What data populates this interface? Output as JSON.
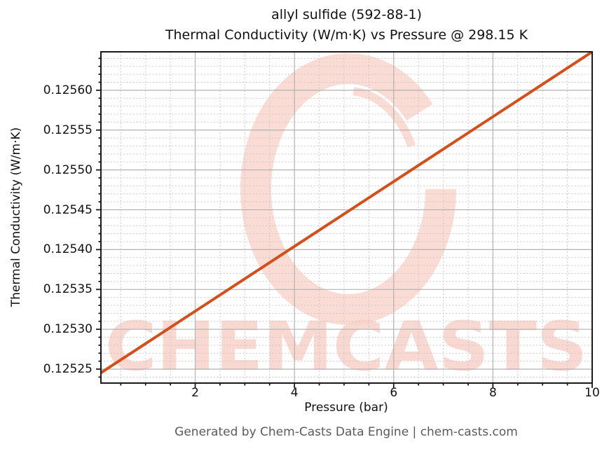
{
  "title": {
    "line1": "allyl sulfide (592-88-1)",
    "line2": "Thermal Conductivity (W/m·K) vs Pressure @ 298.15 K"
  },
  "footer": "Generated by Chem-Casts Data Engine | chem-casts.com",
  "watermark": {
    "text": "CHEMCASTS",
    "logo": "brush-ring-icon",
    "ring_color": "#fadcd5",
    "text_color": "#f8d2c9"
  },
  "chart_data": {
    "type": "line",
    "xlabel": "Pressure (bar)",
    "ylabel": "Thermal Conductivity (W/m·K)",
    "xlim": [
      0.1,
      10
    ],
    "ylim": [
      0.1252325,
      0.1256482
    ],
    "grid": {
      "major": true,
      "minor": true,
      "major_color": "#b2b2b2",
      "minor_color": "#c9c9c9"
    },
    "legend": "none",
    "x_major_ticks": [
      {
        "v": 2,
        "label": "2"
      },
      {
        "v": 4,
        "label": "4"
      },
      {
        "v": 6,
        "label": "6"
      },
      {
        "v": 8,
        "label": "8"
      },
      {
        "v": 10,
        "label": "10"
      }
    ],
    "x_minor_step": 0.5,
    "y_major_ticks": [
      {
        "v": 0.12525,
        "label": "0.12525"
      },
      {
        "v": 0.1253,
        "label": "0.12530"
      },
      {
        "v": 0.12535,
        "label": "0.12535"
      },
      {
        "v": 0.1254,
        "label": "0.12540"
      },
      {
        "v": 0.12545,
        "label": "0.12545"
      },
      {
        "v": 0.1255,
        "label": "0.12550"
      },
      {
        "v": 0.12555,
        "label": "0.12555"
      },
      {
        "v": 0.1256,
        "label": "0.12560"
      }
    ],
    "y_minor_step": 1e-05,
    "line_color": "#d1501c",
    "line_width": 4,
    "series": [
      {
        "name": "thermal-conductivity",
        "x": [
          0.1,
          1,
          2,
          3,
          4,
          5,
          6,
          7,
          8,
          9,
          10
        ],
        "y": [
          0.1252454,
          0.125282,
          0.1253227,
          0.1253634,
          0.125404,
          0.1254447,
          0.1254854,
          0.1255261,
          0.1255668,
          0.1256075,
          0.1256482
        ]
      }
    ]
  }
}
